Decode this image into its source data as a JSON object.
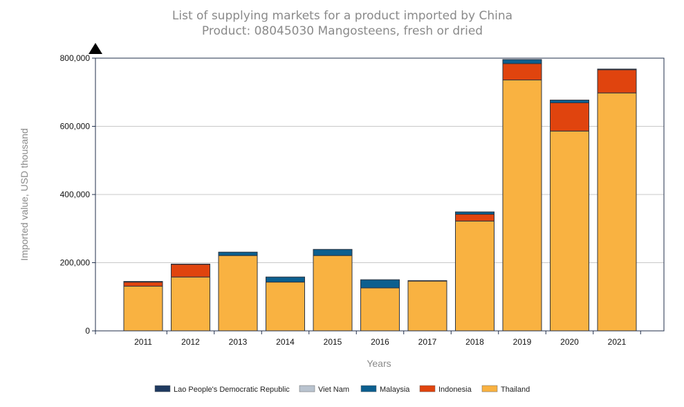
{
  "chart_data": {
    "type": "bar",
    "stacked": true,
    "title": "List of supplying markets for a product imported by China",
    "subtitle": "Product: 08045030 Mangosteens, fresh or dried",
    "xlabel": "Years",
    "ylabel": "Imported value, USD thousand",
    "ylim": [
      0,
      800000
    ],
    "yticks": [
      0,
      200000,
      400000,
      600000,
      800000
    ],
    "ytick_labels": [
      "0",
      "200,000",
      "400,000",
      "600,000",
      "800,000"
    ],
    "grid": true,
    "legend_position": "bottom",
    "categories": [
      "2011",
      "2012",
      "2013",
      "2014",
      "2015",
      "2016",
      "2017",
      "2018",
      "2019",
      "2020",
      "2021"
    ],
    "series": [
      {
        "name": "Thailand",
        "color": "#f9b241",
        "values": [
          131000,
          158000,
          221000,
          143000,
          221000,
          126000,
          146000,
          322000,
          736000,
          586000,
          698000
        ]
      },
      {
        "name": "Indonesia",
        "color": "#e0440e",
        "values": [
          12000,
          37000,
          0,
          0,
          0,
          0,
          0,
          20000,
          48000,
          83000,
          68000
        ]
      },
      {
        "name": "Malaysia",
        "color": "#0c5f8f",
        "values": [
          0,
          0,
          10000,
          15000,
          18000,
          24000,
          0,
          7000,
          12000,
          8000,
          0
        ]
      },
      {
        "name": "Viet Nam",
        "color": "#b9c3cf",
        "values": [
          0,
          0,
          0,
          0,
          0,
          0,
          0,
          0,
          0,
          0,
          0
        ]
      },
      {
        "name": "Lao People's Democratic Republic",
        "color": "#1f3a60",
        "values": [
          2000,
          1000,
          0,
          0,
          0,
          0,
          1500,
          0,
          0,
          0,
          2000
        ]
      }
    ],
    "legend_order": [
      "Lao People's Democratic Republic",
      "Viet Nam",
      "Malaysia",
      "Indonesia",
      "Thailand"
    ]
  }
}
